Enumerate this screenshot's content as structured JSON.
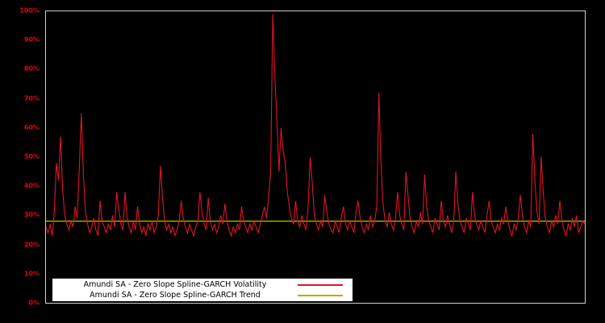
{
  "chart_data": {
    "type": "line",
    "title": "",
    "xlabel": "",
    "ylabel": "",
    "ylim": [
      0,
      100
    ],
    "yticks": [
      "0%",
      "10%",
      "20%",
      "30%",
      "40%",
      "50%",
      "60%",
      "70%",
      "80%",
      "90%",
      "100%"
    ],
    "grid": false,
    "legend_position": "bottom-left-inside",
    "series": [
      {
        "name": "Amundi SA - Zero Slope Spline-GARCH Volatility",
        "color": "#e01525",
        "values": [
          26,
          24,
          27,
          23,
          31,
          48,
          42,
          57,
          39,
          30,
          27,
          25,
          28,
          26,
          33,
          29,
          46,
          65,
          44,
          31,
          27,
          24,
          26,
          29,
          25,
          23,
          35,
          28,
          26,
          24,
          27,
          25,
          30,
          26,
          38,
          32,
          27,
          25,
          38,
          29,
          26,
          24,
          28,
          25,
          33,
          27,
          24,
          26,
          23,
          27,
          25,
          28,
          24,
          26,
          30,
          47,
          36,
          28,
          25,
          27,
          24,
          26,
          23,
          25,
          28,
          35,
          29,
          26,
          24,
          27,
          25,
          23,
          26,
          28,
          38,
          31,
          27,
          25,
          36,
          28,
          25,
          27,
          24,
          26,
          30,
          27,
          34,
          28,
          25,
          23,
          26,
          24,
          27,
          25,
          33,
          28,
          26,
          24,
          27,
          25,
          28,
          26,
          24,
          27,
          30,
          33,
          29,
          36,
          45,
          99,
          78,
          62,
          45,
          60,
          52,
          48,
          38,
          33,
          29,
          27,
          35,
          28,
          26,
          30,
          27,
          25,
          33,
          50,
          41,
          30,
          27,
          25,
          28,
          26,
          37,
          31,
          27,
          25,
          24,
          28,
          26,
          24,
          30,
          33,
          27,
          25,
          28,
          26,
          24,
          31,
          35,
          29,
          26,
          24,
          27,
          25,
          30,
          26,
          28,
          33,
          72,
          48,
          34,
          28,
          26,
          31,
          27,
          25,
          29,
          38,
          30,
          27,
          25,
          45,
          37,
          29,
          26,
          24,
          28,
          26,
          31,
          27,
          44,
          33,
          28,
          26,
          24,
          29,
          27,
          25,
          35,
          28,
          26,
          30,
          27,
          24,
          28,
          45,
          34,
          28,
          26,
          24,
          29,
          27,
          25,
          38,
          30,
          27,
          25,
          28,
          26,
          24,
          30,
          35,
          28,
          26,
          24,
          27,
          25,
          29,
          27,
          33,
          28,
          25,
          23,
          27,
          25,
          29,
          37,
          30,
          26,
          24,
          28,
          26,
          58,
          42,
          31,
          27,
          50,
          38,
          29,
          26,
          24,
          28,
          26,
          30,
          27,
          35,
          28,
          25,
          23,
          27,
          25,
          29,
          26,
          30,
          24,
          26,
          28,
          27
        ]
      },
      {
        "name": "Amundi SA - Zero Slope Spline-GARCH Trend",
        "color": "#b8ae00",
        "value": 28
      }
    ]
  },
  "colors": {
    "background": "#000000",
    "plot_border": "#cfcfcf",
    "axis_label": "#e8001c",
    "legend_bg": "#ffffff",
    "legend_text": "#000000"
  }
}
